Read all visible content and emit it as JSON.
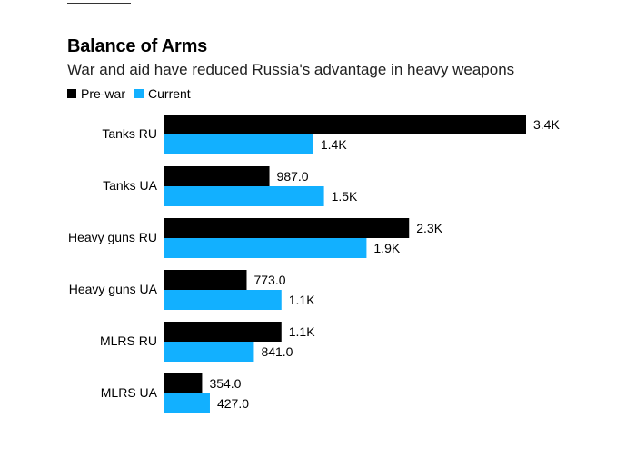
{
  "header": {
    "title": "Balance of Arms",
    "subtitle": "War and aid have reduced Russia's advantage in heavy weapons"
  },
  "colors": {
    "prewar": "#000000",
    "current": "#12b0ff"
  },
  "chart_data": {
    "type": "bar",
    "orientation": "horizontal",
    "title": "Balance of Arms",
    "subtitle": "War and aid have reduced Russia's advantage in heavy weapons",
    "legend_position": "top-left",
    "grid": false,
    "categories": [
      "Tanks RU",
      "Tanks UA",
      "Heavy guns RU",
      "Heavy guns UA",
      "MLRS RU",
      "MLRS UA"
    ],
    "xlim": [
      0,
      3400
    ],
    "series": [
      {
        "name": "Pre-war",
        "values": [
          3400,
          987,
          2300,
          773,
          1100,
          354
        ],
        "labels": [
          "3.4K",
          "987.0",
          "2.3K",
          "773.0",
          "1.1K",
          "354.0"
        ]
      },
      {
        "name": "Current",
        "values": [
          1400,
          1500,
          1900,
          1100,
          841,
          427
        ],
        "labels": [
          "1.4K",
          "1.5K",
          "1.9K",
          "1.1K",
          "841.0",
          "427.0"
        ]
      }
    ]
  }
}
